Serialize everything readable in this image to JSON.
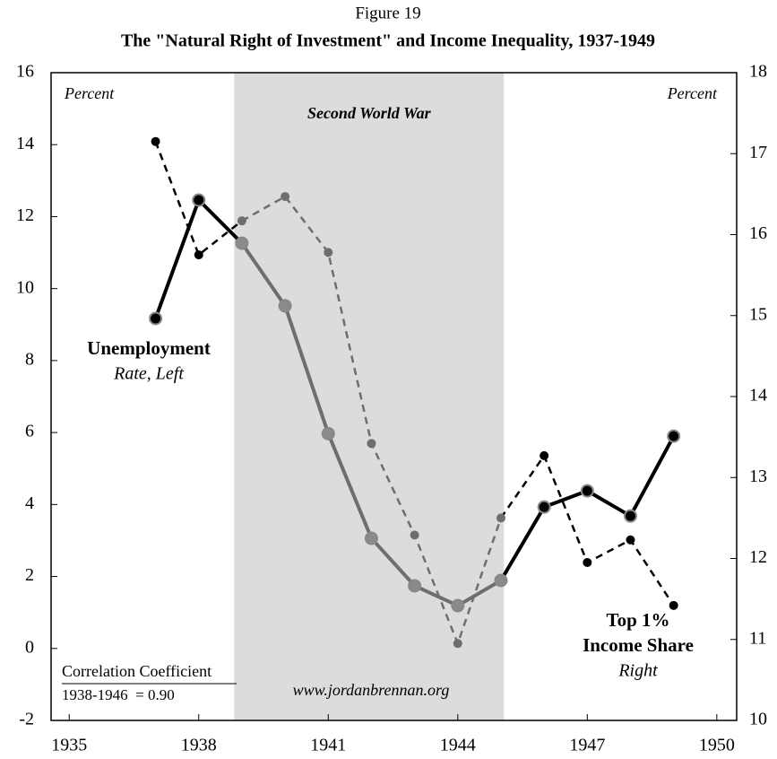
{
  "chart_data": {
    "type": "line",
    "supertitle": "Figure 19",
    "title": "The \"Natural Right of Investment\" and Income Inequality, 1937-1949",
    "x": [
      1937,
      1938,
      1939,
      1940,
      1941,
      1942,
      1943,
      1944,
      1945,
      1946,
      1947,
      1948,
      1949
    ],
    "xlim": [
      1934.58,
      1950.46
    ],
    "xticks": [
      1935,
      1938,
      1941,
      1944,
      1947,
      1950
    ],
    "ylim": [
      -2,
      16
    ],
    "yticks": [
      -2,
      0,
      2,
      4,
      6,
      8,
      10,
      12,
      14,
      16
    ],
    "y2lim": [
      10,
      18
    ],
    "y2ticks": [
      10,
      11,
      12,
      13,
      14,
      15,
      16,
      17,
      18
    ],
    "y_label": "Percent",
    "y2_label": "Percent",
    "shaded_region": {
      "label": "Second World War",
      "x": [
        1938.82,
        1945.07
      ],
      "color": "#dcdcdc"
    },
    "series": [
      {
        "name": "Unemployment",
        "name_sub": "Rate, Left",
        "color": "#000000",
        "war_color": "#6e6e6e",
        "dash": false,
        "values": [
          9.17,
          12.46,
          11.26,
          9.52,
          5.97,
          3.06,
          1.74,
          1.19,
          1.89,
          3.93,
          4.38,
          3.68,
          5.9
        ]
      },
      {
        "name": "Top 1%",
        "name_sub": "Income Share",
        "name_sub2": "Right",
        "color": "#000000",
        "war_color": "#6e6e6e",
        "dash": true,
        "axis": "y2",
        "values": [
          17.15,
          15.75,
          16.17,
          16.47,
          15.78,
          13.42,
          12.29,
          10.95,
          12.5,
          13.27,
          11.95,
          12.23,
          11.42
        ]
      }
    ],
    "annotations": [
      "Correlation Coefficient",
      "1938-1946  = 0.90",
      "www.jordanbrennan.org"
    ]
  }
}
